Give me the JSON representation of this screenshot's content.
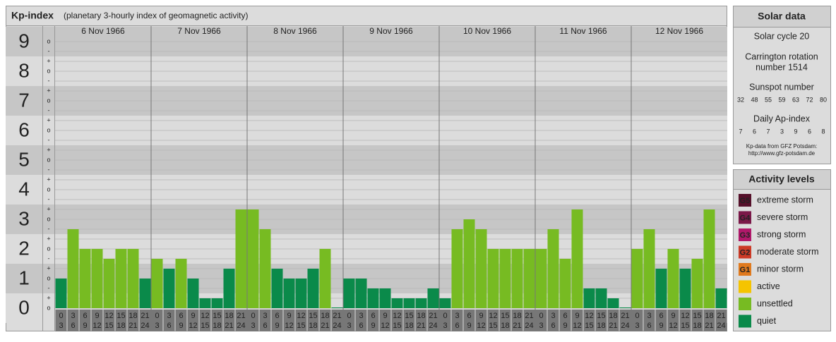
{
  "chart_data": {
    "type": "bar",
    "title": "Kp-index",
    "subtitle": "(planetary 3-hourly index of geomagnetic activity)",
    "categories": [
      "6 Nov 1966",
      "7 Nov 1966",
      "8 Nov 1966",
      "9 Nov 1966",
      "10 Nov 1966",
      "11 Nov 1966",
      "12 Nov 1966"
    ],
    "hour_ticks": [
      [
        0,
        3
      ],
      [
        3,
        6
      ],
      [
        6,
        9
      ],
      [
        9,
        12
      ],
      [
        12,
        15
      ],
      [
        15,
        18
      ],
      [
        18,
        21
      ],
      [
        21,
        24
      ]
    ],
    "values": [
      [
        1,
        2.667,
        2,
        2,
        1.667,
        2,
        2,
        1
      ],
      [
        1.667,
        1.333,
        1.667,
        1,
        0.333,
        0.333,
        1.333,
        3.333
      ],
      [
        3.333,
        2.667,
        1.333,
        1,
        1,
        1.333,
        2,
        0
      ],
      [
        1,
        1,
        0.667,
        0.667,
        0.333,
        0.333,
        0.333,
        0.667
      ],
      [
        0.333,
        2.667,
        3,
        2.667,
        2,
        2,
        2,
        2
      ],
      [
        2,
        2.667,
        1.667,
        3.333,
        0.667,
        0.667,
        0.333,
        0
      ],
      [
        2,
        2.667,
        1.333,
        2,
        1.333,
        1.667,
        3.333,
        0.667
      ]
    ],
    "colors": [
      [
        "#0a8a4a",
        "#77bb22",
        "#77bb22",
        "#77bb22",
        "#77bb22",
        "#77bb22",
        "#77bb22",
        "#0a8a4a"
      ],
      [
        "#77bb22",
        "#0a8a4a",
        "#77bb22",
        "#0a8a4a",
        "#0a8a4a",
        "#0a8a4a",
        "#0a8a4a",
        "#77bb22"
      ],
      [
        "#77bb22",
        "#77bb22",
        "#0a8a4a",
        "#0a8a4a",
        "#0a8a4a",
        "#0a8a4a",
        "#77bb22",
        "#0a8a4a"
      ],
      [
        "#0a8a4a",
        "#0a8a4a",
        "#0a8a4a",
        "#0a8a4a",
        "#0a8a4a",
        "#0a8a4a",
        "#0a8a4a",
        "#0a8a4a"
      ],
      [
        "#0a8a4a",
        "#77bb22",
        "#77bb22",
        "#77bb22",
        "#77bb22",
        "#77bb22",
        "#77bb22",
        "#77bb22"
      ],
      [
        "#77bb22",
        "#77bb22",
        "#77bb22",
        "#77bb22",
        "#0a8a4a",
        "#0a8a4a",
        "#0a8a4a",
        "#0a8a4a"
      ],
      [
        "#77bb22",
        "#77bb22",
        "#0a8a4a",
        "#77bb22",
        "#0a8a4a",
        "#77bb22",
        "#77bb22",
        "#0a8a4a"
      ]
    ],
    "ylim": [
      0,
      9
    ],
    "yticks": [
      0,
      1,
      2,
      3,
      4,
      5,
      6,
      7,
      8,
      9
    ],
    "yminor": [
      {
        "value": 0,
        "label": "o"
      },
      {
        "value": 0.333,
        "label": "+"
      },
      {
        "value": 0.667,
        "label": "-"
      },
      {
        "value": 1,
        "label": "o"
      },
      {
        "value": 1.333,
        "label": "+"
      },
      {
        "value": 1.667,
        "label": "-"
      },
      {
        "value": 2,
        "label": "o"
      },
      {
        "value": 2.333,
        "label": "+"
      },
      {
        "value": 2.667,
        "label": "-"
      },
      {
        "value": 3,
        "label": "o"
      },
      {
        "value": 3.333,
        "label": "+"
      },
      {
        "value": 3.667,
        "label": "-"
      },
      {
        "value": 4,
        "label": "o"
      },
      {
        "value": 4.333,
        "label": "+"
      },
      {
        "value": 4.667,
        "label": "-"
      },
      {
        "value": 5,
        "label": "o"
      },
      {
        "value": 5.333,
        "label": "+"
      },
      {
        "value": 5.667,
        "label": "-"
      },
      {
        "value": 6,
        "label": "o"
      },
      {
        "value": 6.333,
        "label": "+"
      },
      {
        "value": 6.667,
        "label": "-"
      },
      {
        "value": 7,
        "label": "o"
      },
      {
        "value": 7.333,
        "label": "+"
      },
      {
        "value": 7.667,
        "label": "-"
      },
      {
        "value": 8,
        "label": "o"
      },
      {
        "value": 8.333,
        "label": "+"
      },
      {
        "value": 8.667,
        "label": "-"
      },
      {
        "value": 9,
        "label": "o"
      }
    ],
    "grid": true
  },
  "solar_data": {
    "title": "Solar data",
    "cycle": "Solar cycle 20",
    "carrington": [
      "Carrington rotation",
      "number 1514"
    ],
    "sunspot_title": "Sunspot number",
    "sunspot_numbers": [
      32,
      48,
      55,
      59,
      63,
      72,
      80
    ],
    "ap_title": "Daily Ap-index",
    "ap_values": [
      7,
      6,
      7,
      3,
      9,
      6,
      8
    ],
    "source": [
      "Kp-data from GFZ Potsdam:",
      "http://www.gfz-potsdam.de"
    ]
  },
  "activity_levels": {
    "title": "Activity levels",
    "items": [
      {
        "code": "G5",
        "name": "extreme storm",
        "color": "#55102a"
      },
      {
        "code": "G4",
        "name": "severe storm",
        "color": "#7a1848"
      },
      {
        "code": "G3",
        "name": "strong storm",
        "color": "#b0186a"
      },
      {
        "code": "G2",
        "name": "moderate storm",
        "color": "#cc3a26"
      },
      {
        "code": "G1",
        "name": "minor storm",
        "color": "#e07a1e"
      },
      {
        "name": "active",
        "color": "#f5c400"
      },
      {
        "name": "unsettled",
        "color": "#77bb22"
      },
      {
        "name": "quiet",
        "color": "#0a8a4a"
      }
    ]
  }
}
